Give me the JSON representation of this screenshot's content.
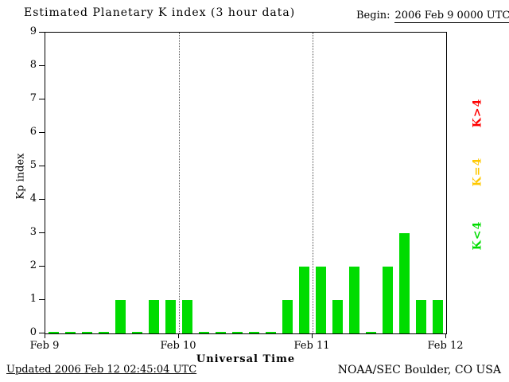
{
  "title": "Estimated Planetary K index (3 hour data)",
  "header": {
    "begin_label": "Begin:",
    "begin_value": "2006 Feb 9 0000 UTC"
  },
  "axes": {
    "ylabel": "Kp index",
    "xlabel": "Universal Time"
  },
  "legend": [
    {
      "label": "K>4",
      "color": "#ff0000"
    },
    {
      "label": "K=4",
      "color": "#ffc800"
    },
    {
      "label": "K<4",
      "color": "#00dc00"
    }
  ],
  "footer": {
    "updated": "Updated 2006 Feb 12 02:45:04 UTC",
    "credit": "NOAA/SEC Boulder, CO USA"
  },
  "chart_data": {
    "type": "bar",
    "title": "Estimated Planetary K index (3 hour data)",
    "xlabel": "Universal Time",
    "ylabel": "Kp index",
    "ylim": [
      0,
      9
    ],
    "yticks": [
      0,
      1,
      2,
      3,
      4,
      5,
      6,
      7,
      8,
      9
    ],
    "interval_hours": 3,
    "begin": "2006 Feb 9 0000 UTC",
    "end": "2006 Feb 12 0000 UTC",
    "xtick_labels": [
      "Feb 9",
      "Feb 10",
      "Feb 11",
      "Feb 12"
    ],
    "xtick_positions": [
      0,
      8,
      16,
      24
    ],
    "gridline_positions": [
      8,
      16
    ],
    "values": [
      0,
      0,
      0,
      0,
      1,
      0,
      1,
      1,
      1,
      0,
      0,
      0,
      0,
      0,
      1,
      2,
      2,
      1,
      2,
      0,
      2,
      3,
      1,
      1
    ],
    "bar_color": "#00dc00",
    "threshold_colors": {
      "k_below_4": "#00dc00",
      "k_equal_4": "#ffc800",
      "k_above_4": "#ff0000"
    },
    "grid": "vertical dotted at day boundaries",
    "legend_position": "right, rotated"
  }
}
